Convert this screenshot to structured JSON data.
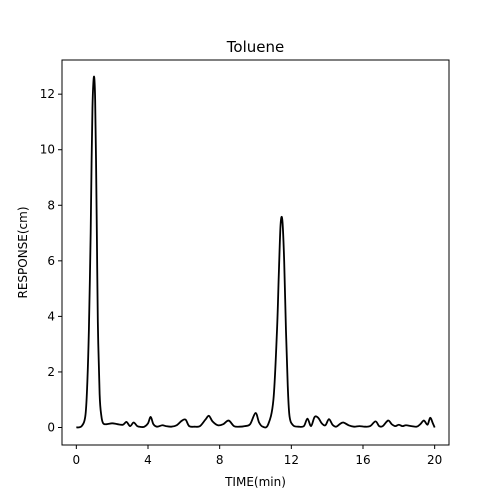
{
  "chart_data": {
    "type": "line",
    "title": "Toluene",
    "xlabel": "TIME(min)",
    "ylabel": "RESPONSE(cm)",
    "xlim": [
      -0.8,
      20.8
    ],
    "ylim": [
      -0.63,
      13.23
    ],
    "x_ticks": [
      0,
      4,
      8,
      12,
      16,
      20
    ],
    "y_ticks": [
      0,
      2,
      4,
      6,
      8,
      10,
      12
    ],
    "x_tick_labels": [
      "0",
      "4",
      "8",
      "12",
      "16",
      "20"
    ],
    "y_tick_labels": [
      "0",
      "2",
      "4",
      "6",
      "8",
      "10",
      "12"
    ],
    "grid": false,
    "series": [
      {
        "color": "#000000",
        "x": [
          0,
          0.3,
          0.5,
          0.6,
          0.7,
          0.8,
          0.85,
          0.9,
          0.95,
          1.0,
          1.05,
          1.1,
          1.15,
          1.2,
          1.3,
          1.4,
          1.5,
          1.7,
          2.0,
          2.3,
          2.6,
          2.8,
          3.0,
          3.2,
          3.4,
          3.6,
          3.8,
          4.0,
          4.15,
          4.3,
          4.5,
          4.8,
          5.0,
          5.3,
          5.6,
          5.9,
          6.1,
          6.3,
          6.6,
          6.9,
          7.2,
          7.4,
          7.6,
          7.9,
          8.2,
          8.5,
          8.8,
          9.1,
          9.4,
          9.7,
          10.0,
          10.2,
          10.4,
          10.7,
          11.0,
          11.2,
          11.3,
          11.4,
          11.5,
          11.6,
          11.7,
          11.8,
          11.9,
          12.1,
          12.4,
          12.7,
          12.9,
          13.1,
          13.3,
          13.5,
          13.7,
          13.9,
          14.1,
          14.3,
          14.5,
          14.7,
          14.9,
          15.2,
          15.5,
          15.8,
          16.1,
          16.4,
          16.7,
          16.9,
          17.1,
          17.4,
          17.6,
          17.8,
          18.0,
          18.2,
          18.4,
          18.7,
          19.0,
          19.2,
          19.4,
          19.6,
          19.75,
          19.9,
          20.0
        ],
        "y": [
          0.0,
          0.05,
          0.4,
          1.4,
          3.5,
          7.0,
          9.5,
          11.5,
          12.4,
          12.6,
          11.8,
          9.6,
          6.7,
          3.8,
          1.2,
          0.4,
          0.15,
          0.12,
          0.15,
          0.12,
          0.1,
          0.2,
          0.05,
          0.18,
          0.05,
          0.02,
          0.03,
          0.15,
          0.38,
          0.12,
          0.03,
          0.08,
          0.05,
          0.03,
          0.08,
          0.25,
          0.28,
          0.05,
          0.03,
          0.05,
          0.28,
          0.42,
          0.22,
          0.08,
          0.12,
          0.25,
          0.05,
          0.03,
          0.05,
          0.12,
          0.52,
          0.18,
          0.03,
          0.1,
          1.0,
          3.5,
          5.5,
          7.3,
          7.45,
          6.0,
          3.5,
          1.5,
          0.4,
          0.08,
          0.03,
          0.05,
          0.32,
          0.05,
          0.38,
          0.35,
          0.15,
          0.08,
          0.3,
          0.1,
          0.03,
          0.12,
          0.18,
          0.08,
          0.03,
          0.05,
          0.03,
          0.05,
          0.22,
          0.05,
          0.05,
          0.25,
          0.12,
          0.05,
          0.1,
          0.05,
          0.08,
          0.05,
          0.03,
          0.12,
          0.25,
          0.1,
          0.35,
          0.15,
          0.0
        ]
      }
    ]
  }
}
